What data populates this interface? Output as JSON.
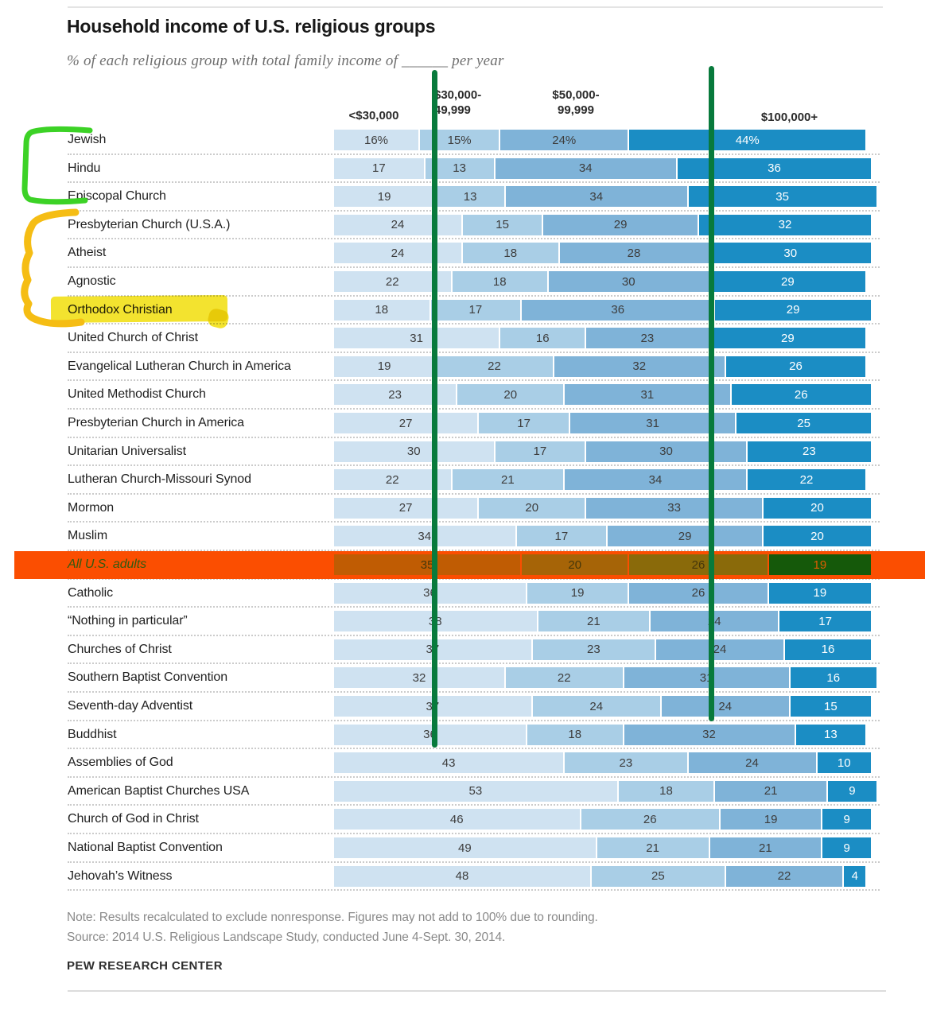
{
  "title": "Household income of U.S. religious groups",
  "subtitle": "% of each religious group with total family income of ______ per year",
  "columns": [
    "<$30,000",
    "$30,000-\n49,999",
    "$50,000-\n99,999",
    "$100,000+"
  ],
  "chart_data": {
    "type": "bar",
    "orientation": "horizontal",
    "stacked": true,
    "unit": "percent",
    "title": "Household income of U.S. religious groups",
    "xlabel": "",
    "ylabel": "",
    "xlim": [
      0,
      100
    ],
    "grid": false,
    "legend_position": "top-column-headers",
    "categories": [
      "Jewish",
      "Hindu",
      "Episcopal Church",
      "Presbyterian Church (U.S.A.)",
      "Atheist",
      "Agnostic",
      "Orthodox Christian",
      "United Church of Christ",
      "Evangelical Lutheran Church in America",
      "United Methodist Church",
      "Presbyterian Church in America",
      "Unitarian Universalist",
      "Lutheran Church-Missouri Synod",
      "Mormon",
      "Muslim",
      "All U.S. adults",
      "Catholic",
      "“Nothing in particular”",
      "Churches of Christ",
      "Southern Baptist Convention",
      "Seventh-day Adventist",
      "Buddhist",
      "Assemblies of God",
      "American Baptist Churches USA",
      "Church of God in Christ",
      "National Baptist Convention",
      "Jehovah’s Witness"
    ],
    "series": [
      {
        "name": "<$30,000",
        "values": [
          16,
          17,
          19,
          24,
          24,
          22,
          18,
          31,
          19,
          23,
          27,
          30,
          22,
          27,
          34,
          35,
          36,
          38,
          37,
          32,
          37,
          36,
          43,
          53,
          46,
          49,
          48
        ]
      },
      {
        "name": "$30,000-49,999",
        "values": [
          15,
          13,
          13,
          15,
          18,
          18,
          17,
          16,
          22,
          20,
          17,
          17,
          21,
          20,
          17,
          20,
          19,
          21,
          23,
          22,
          24,
          18,
          23,
          18,
          26,
          21,
          25
        ]
      },
      {
        "name": "$50,000-99,999",
        "values": [
          24,
          34,
          34,
          29,
          28,
          30,
          36,
          23,
          32,
          31,
          31,
          30,
          34,
          33,
          29,
          26,
          26,
          24,
          24,
          31,
          24,
          32,
          24,
          21,
          19,
          21,
          22
        ]
      },
      {
        "name": "$100,000+",
        "values": [
          44,
          36,
          35,
          32,
          30,
          29,
          29,
          29,
          26,
          26,
          25,
          23,
          22,
          20,
          20,
          19,
          19,
          17,
          16,
          16,
          15,
          13,
          10,
          9,
          9,
          9,
          4
        ]
      }
    ],
    "first_row_value_suffix": "%"
  },
  "colors": {
    "segments": [
      "#cfe2f1",
      "#a9cee6",
      "#7fb3d8",
      "#1b8dc4"
    ],
    "segment_text": "#3d3d3d",
    "segment_text_last": "#ffffff"
  },
  "annotations": {
    "green_bracket_rows": "Jewish to Episcopal Church",
    "yellow_bracket_rows": "Presbyterian Church (U.S.A.) to Orthodox Christian",
    "label_highlight": "Orthodox Christian",
    "highlighted_row": "All U.S. adults",
    "green_bracket_color": "#3cd226",
    "yellow_bracket_color": "#f5bd14",
    "yellow_highlight_color": "#f2df12",
    "orange_band_color": "#fb4e01",
    "green_line_color": "#087a3c",
    "band_segment_colors": [
      "#c05c03",
      "#a66407",
      "#8a6a0a",
      "#15590a"
    ],
    "band_text_colors": [
      "#46370a",
      "#46370a",
      "#46370a",
      "#e05d02"
    ],
    "band_label_color": "#335a10"
  },
  "footer": {
    "note": "Note: Results recalculated to exclude nonresponse. Figures may not add to 100% due to rounding.",
    "source": "Source: 2014 U.S. Religious Landscape Study, conducted June 4-Sept. 30, 2014.",
    "brand": "PEW RESEARCH CENTER"
  }
}
